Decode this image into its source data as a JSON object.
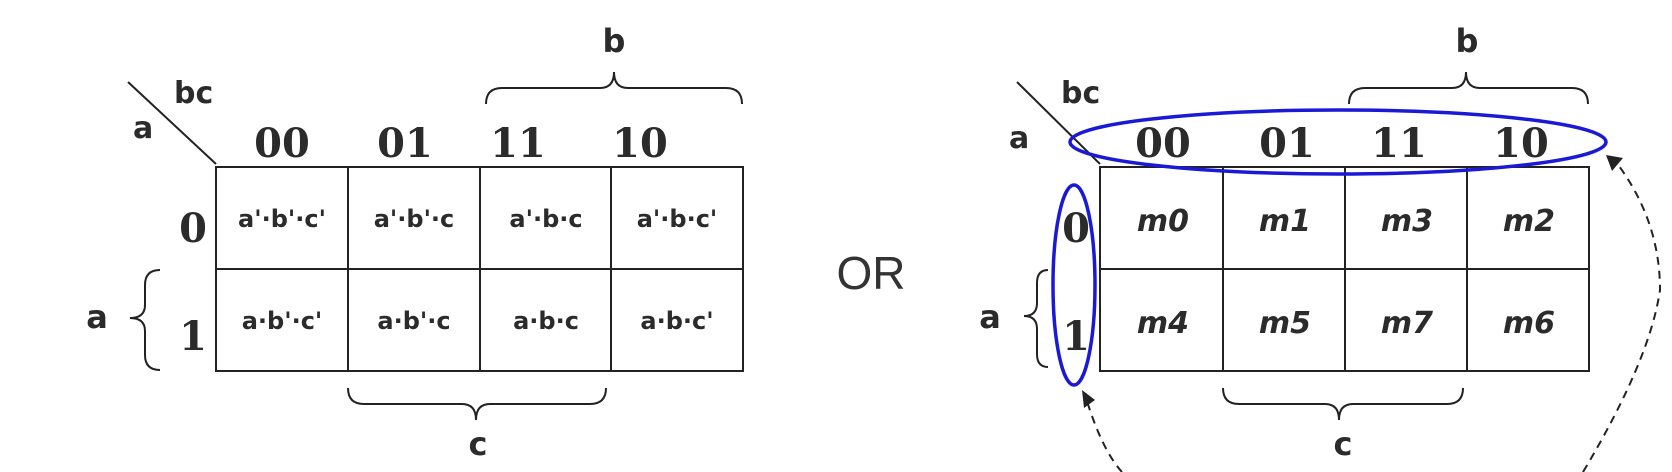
{
  "left_map": {
    "corner_row_var": "a",
    "corner_col_vars": "bc",
    "col_headers": [
      "00",
      "01",
      "11",
      "10"
    ],
    "row_headers": [
      "0",
      "1"
    ],
    "cells": [
      [
        "a'·b'·c'",
        "a'·b'·c",
        "a'·b·c",
        "a'·b·c'"
      ],
      [
        "a·b'·c'",
        "a·b'·c",
        "a·b·c",
        "a·b·c'"
      ]
    ],
    "brace_b_label": "b",
    "brace_c_label": "c",
    "brace_a_label": "a"
  },
  "separator_text": "OR",
  "right_map": {
    "corner_row_var": "a",
    "corner_col_vars": "bc",
    "col_headers": [
      "00",
      "01",
      "11",
      "10"
    ],
    "row_headers": [
      "0",
      "1"
    ],
    "cells": [
      [
        "m0",
        "m1",
        "m3",
        "m2"
      ],
      [
        "m4",
        "m5",
        "m7",
        "m6"
      ]
    ],
    "brace_b_label": "b",
    "brace_c_label": "c",
    "brace_a_label": "a"
  },
  "colors": {
    "highlight": "#1a1ad6",
    "ink": "#2b2b2b"
  }
}
